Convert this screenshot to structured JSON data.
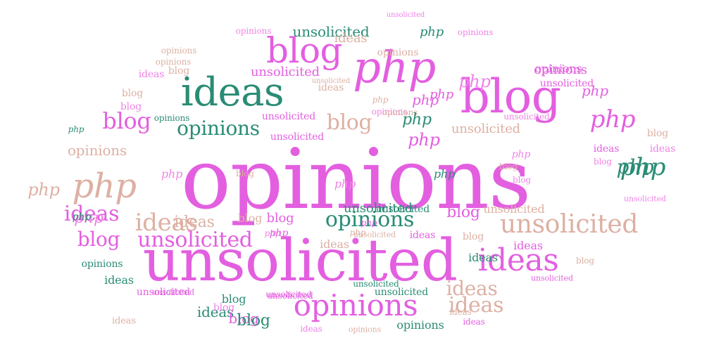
{
  "colors": {
    "magenta": "#e35fe0",
    "teal": "#2a8c75",
    "tan": "#ddb0a3",
    "pink": "#ef84e6"
  },
  "words": [
    {
      "text": "opinions",
      "color": "magenta",
      "size": 118
    },
    {
      "text": "unsolicited",
      "color": "magenta",
      "size": 82
    },
    {
      "text": "ideas",
      "color": "teal",
      "size": 56
    },
    {
      "text": "blog",
      "color": "magenta",
      "size": 66
    },
    {
      "text": "php",
      "color": "magenta",
      "size": 62
    },
    {
      "text": "blog",
      "color": "magenta",
      "size": 50
    },
    {
      "text": "php",
      "color": "tan",
      "size": 48
    },
    {
      "text": "opinions",
      "color": "magenta",
      "size": 42
    },
    {
      "text": "unsolicited",
      "color": "tan",
      "size": 36
    },
    {
      "text": "ideas",
      "color": "magenta",
      "size": 44
    },
    {
      "text": "opinions",
      "color": "teal",
      "size": 30
    },
    {
      "text": "unsolicited",
      "color": "magenta",
      "size": 30
    },
    {
      "text": "ideas",
      "color": "tan",
      "size": 34
    },
    {
      "text": "ideas",
      "color": "magenta",
      "size": 30
    },
    {
      "text": "opinions",
      "color": "teal",
      "size": 28
    },
    {
      "text": "blog",
      "color": "magenta",
      "size": 32
    },
    {
      "text": "blog",
      "color": "tan",
      "size": 30
    },
    {
      "text": "blog",
      "color": "magenta",
      "size": 28
    },
    {
      "text": "php",
      "color": "teal",
      "size": 34
    },
    {
      "text": "php",
      "color": "magenta",
      "size": 34
    },
    {
      "text": "ideas",
      "color": "tan",
      "size": 28
    },
    {
      "text": "ideas",
      "color": "tan",
      "size": 30
    },
    {
      "text": "opinions",
      "color": "tan",
      "size": 20
    },
    {
      "text": "opinions",
      "color": "magenta",
      "size": 18
    },
    {
      "text": "unsolicited",
      "color": "teal",
      "size": 20
    },
    {
      "text": "unsolicited",
      "color": "tan",
      "size": 18
    },
    {
      "text": "unsolicited",
      "color": "magenta",
      "size": 18
    },
    {
      "text": "unsolicited",
      "color": "teal",
      "size": 18
    },
    {
      "text": "unsolicited",
      "color": "magenta",
      "size": 14
    },
    {
      "text": "opinions",
      "color": "pink",
      "size": 12
    },
    {
      "text": "opinions",
      "color": "pink",
      "size": 12
    },
    {
      "text": "opinions",
      "color": "pink",
      "size": 12
    },
    {
      "text": "opinions",
      "color": "tan",
      "size": 12
    },
    {
      "text": "opinions",
      "color": "tan",
      "size": 12
    },
    {
      "text": "opinions",
      "color": "tan",
      "size": 14
    },
    {
      "text": "opinions",
      "color": "teal",
      "size": 12
    },
    {
      "text": "opinions",
      "color": "tan",
      "size": 12
    },
    {
      "text": "opinions",
      "color": "teal",
      "size": 14
    },
    {
      "text": "opinions",
      "color": "teal",
      "size": 16
    },
    {
      "text": "opinions",
      "color": "magenta",
      "size": 16
    },
    {
      "text": "opinions",
      "color": "tan",
      "size": 11
    },
    {
      "text": "unsolicited",
      "color": "pink",
      "size": 10
    },
    {
      "text": "unsolicited",
      "color": "tan",
      "size": 16
    },
    {
      "text": "unsolicited",
      "color": "teal",
      "size": 14
    },
    {
      "text": "unsolicited",
      "color": "teal",
      "size": 14
    },
    {
      "text": "unsolicited",
      "color": "pink",
      "size": 12
    },
    {
      "text": "unsolicited",
      "color": "magenta",
      "size": 14
    },
    {
      "text": "unsolicited",
      "color": "tan",
      "size": 11
    },
    {
      "text": "unsolicited",
      "color": "tan",
      "size": 10
    },
    {
      "text": "unsolicited",
      "color": "magenta",
      "size": 14
    },
    {
      "text": "unsolicited",
      "color": "magenta",
      "size": 12
    },
    {
      "text": "unsolicited",
      "color": "teal",
      "size": 12
    },
    {
      "text": "unsolicited",
      "color": "magenta",
      "size": 14
    },
    {
      "text": "unsolicited",
      "color": "magenta",
      "size": 12
    },
    {
      "text": "unsolicited",
      "color": "magenta",
      "size": 11
    },
    {
      "text": "unsolicited",
      "color": "pink",
      "size": 11
    },
    {
      "text": "unsolicited",
      "color": "magenta",
      "size": 11
    },
    {
      "text": "ideas",
      "color": "tan",
      "size": 18
    },
    {
      "text": "ideas",
      "color": "tan",
      "size": 22
    },
    {
      "text": "ideas",
      "color": "pink",
      "size": 14
    },
    {
      "text": "ideas",
      "color": "tan",
      "size": 14
    },
    {
      "text": "ideas",
      "color": "tan",
      "size": 16
    },
    {
      "text": "ideas",
      "color": "teal",
      "size": 16
    },
    {
      "text": "ideas",
      "color": "magenta",
      "size": 16
    },
    {
      "text": "ideas",
      "color": "magenta",
      "size": 14
    },
    {
      "text": "ideas",
      "color": "pink",
      "size": 14
    },
    {
      "text": "ideas",
      "color": "teal",
      "size": 16
    },
    {
      "text": "ideas",
      "color": "magenta",
      "size": 14
    },
    {
      "text": "ideas",
      "color": "magenta",
      "size": 12
    },
    {
      "text": "ideas",
      "color": "pink",
      "size": 12
    },
    {
      "text": "ideas",
      "color": "tan",
      "size": 12
    },
    {
      "text": "ideas",
      "color": "teal",
      "size": 20
    },
    {
      "text": "ideas",
      "color": "tan",
      "size": 13
    },
    {
      "text": "blog",
      "color": "pink",
      "size": 14
    },
    {
      "text": "blog",
      "color": "tan",
      "size": 14
    },
    {
      "text": "blog",
      "color": "tan",
      "size": 14
    },
    {
      "text": "blog",
      "color": "pink",
      "size": 14
    },
    {
      "text": "blog",
      "color": "teal",
      "size": 16
    },
    {
      "text": "blog",
      "color": "tan",
      "size": 16
    },
    {
      "text": "blog",
      "color": "magenta",
      "size": 18
    },
    {
      "text": "blog",
      "color": "magenta",
      "size": 22
    },
    {
      "text": "blog",
      "color": "magenta",
      "size": 20
    },
    {
      "text": "blog",
      "color": "tan",
      "size": 12
    },
    {
      "text": "blog",
      "color": "tan",
      "size": 14
    },
    {
      "text": "blog",
      "color": "pink",
      "size": 12
    },
    {
      "text": "blog",
      "color": "tan",
      "size": 12
    },
    {
      "text": "blog",
      "color": "pink",
      "size": 12
    },
    {
      "text": "blog",
      "color": "teal",
      "size": 22
    },
    {
      "text": "blog",
      "color": "tan",
      "size": 12
    },
    {
      "text": "blog",
      "color": "tan",
      "size": 14
    },
    {
      "text": "php",
      "color": "pink",
      "size": 24
    },
    {
      "text": "php",
      "color": "tan",
      "size": 24
    },
    {
      "text": "php",
      "color": "pink",
      "size": 22
    },
    {
      "text": "php",
      "color": "magenta",
      "size": 20
    },
    {
      "text": "php",
      "color": "magenta",
      "size": 18
    },
    {
      "text": "php",
      "color": "teal",
      "size": 22
    },
    {
      "text": "php",
      "color": "magenta",
      "size": 24
    },
    {
      "text": "php",
      "color": "magenta",
      "size": 20
    },
    {
      "text": "php",
      "color": "pink",
      "size": 16
    },
    {
      "text": "php",
      "color": "teal",
      "size": 16
    },
    {
      "text": "php",
      "color": "pink",
      "size": 14
    },
    {
      "text": "php",
      "color": "magenta",
      "size": 12
    },
    {
      "text": "php",
      "color": "tan",
      "size": 12
    },
    {
      "text": "php",
      "color": "pink",
      "size": 16
    },
    {
      "text": "php",
      "color": "teal",
      "size": 12
    },
    {
      "text": "php",
      "color": "teal",
      "size": 14
    },
    {
      "text": "php",
      "color": "pink",
      "size": 12
    },
    {
      "text": "php",
      "color": "tan",
      "size": 12
    },
    {
      "text": "php",
      "color": "magenta",
      "size": 14
    },
    {
      "text": "php",
      "color": "teal",
      "size": 18
    },
    {
      "text": "php",
      "color": "teal",
      "size": 28
    }
  ]
}
